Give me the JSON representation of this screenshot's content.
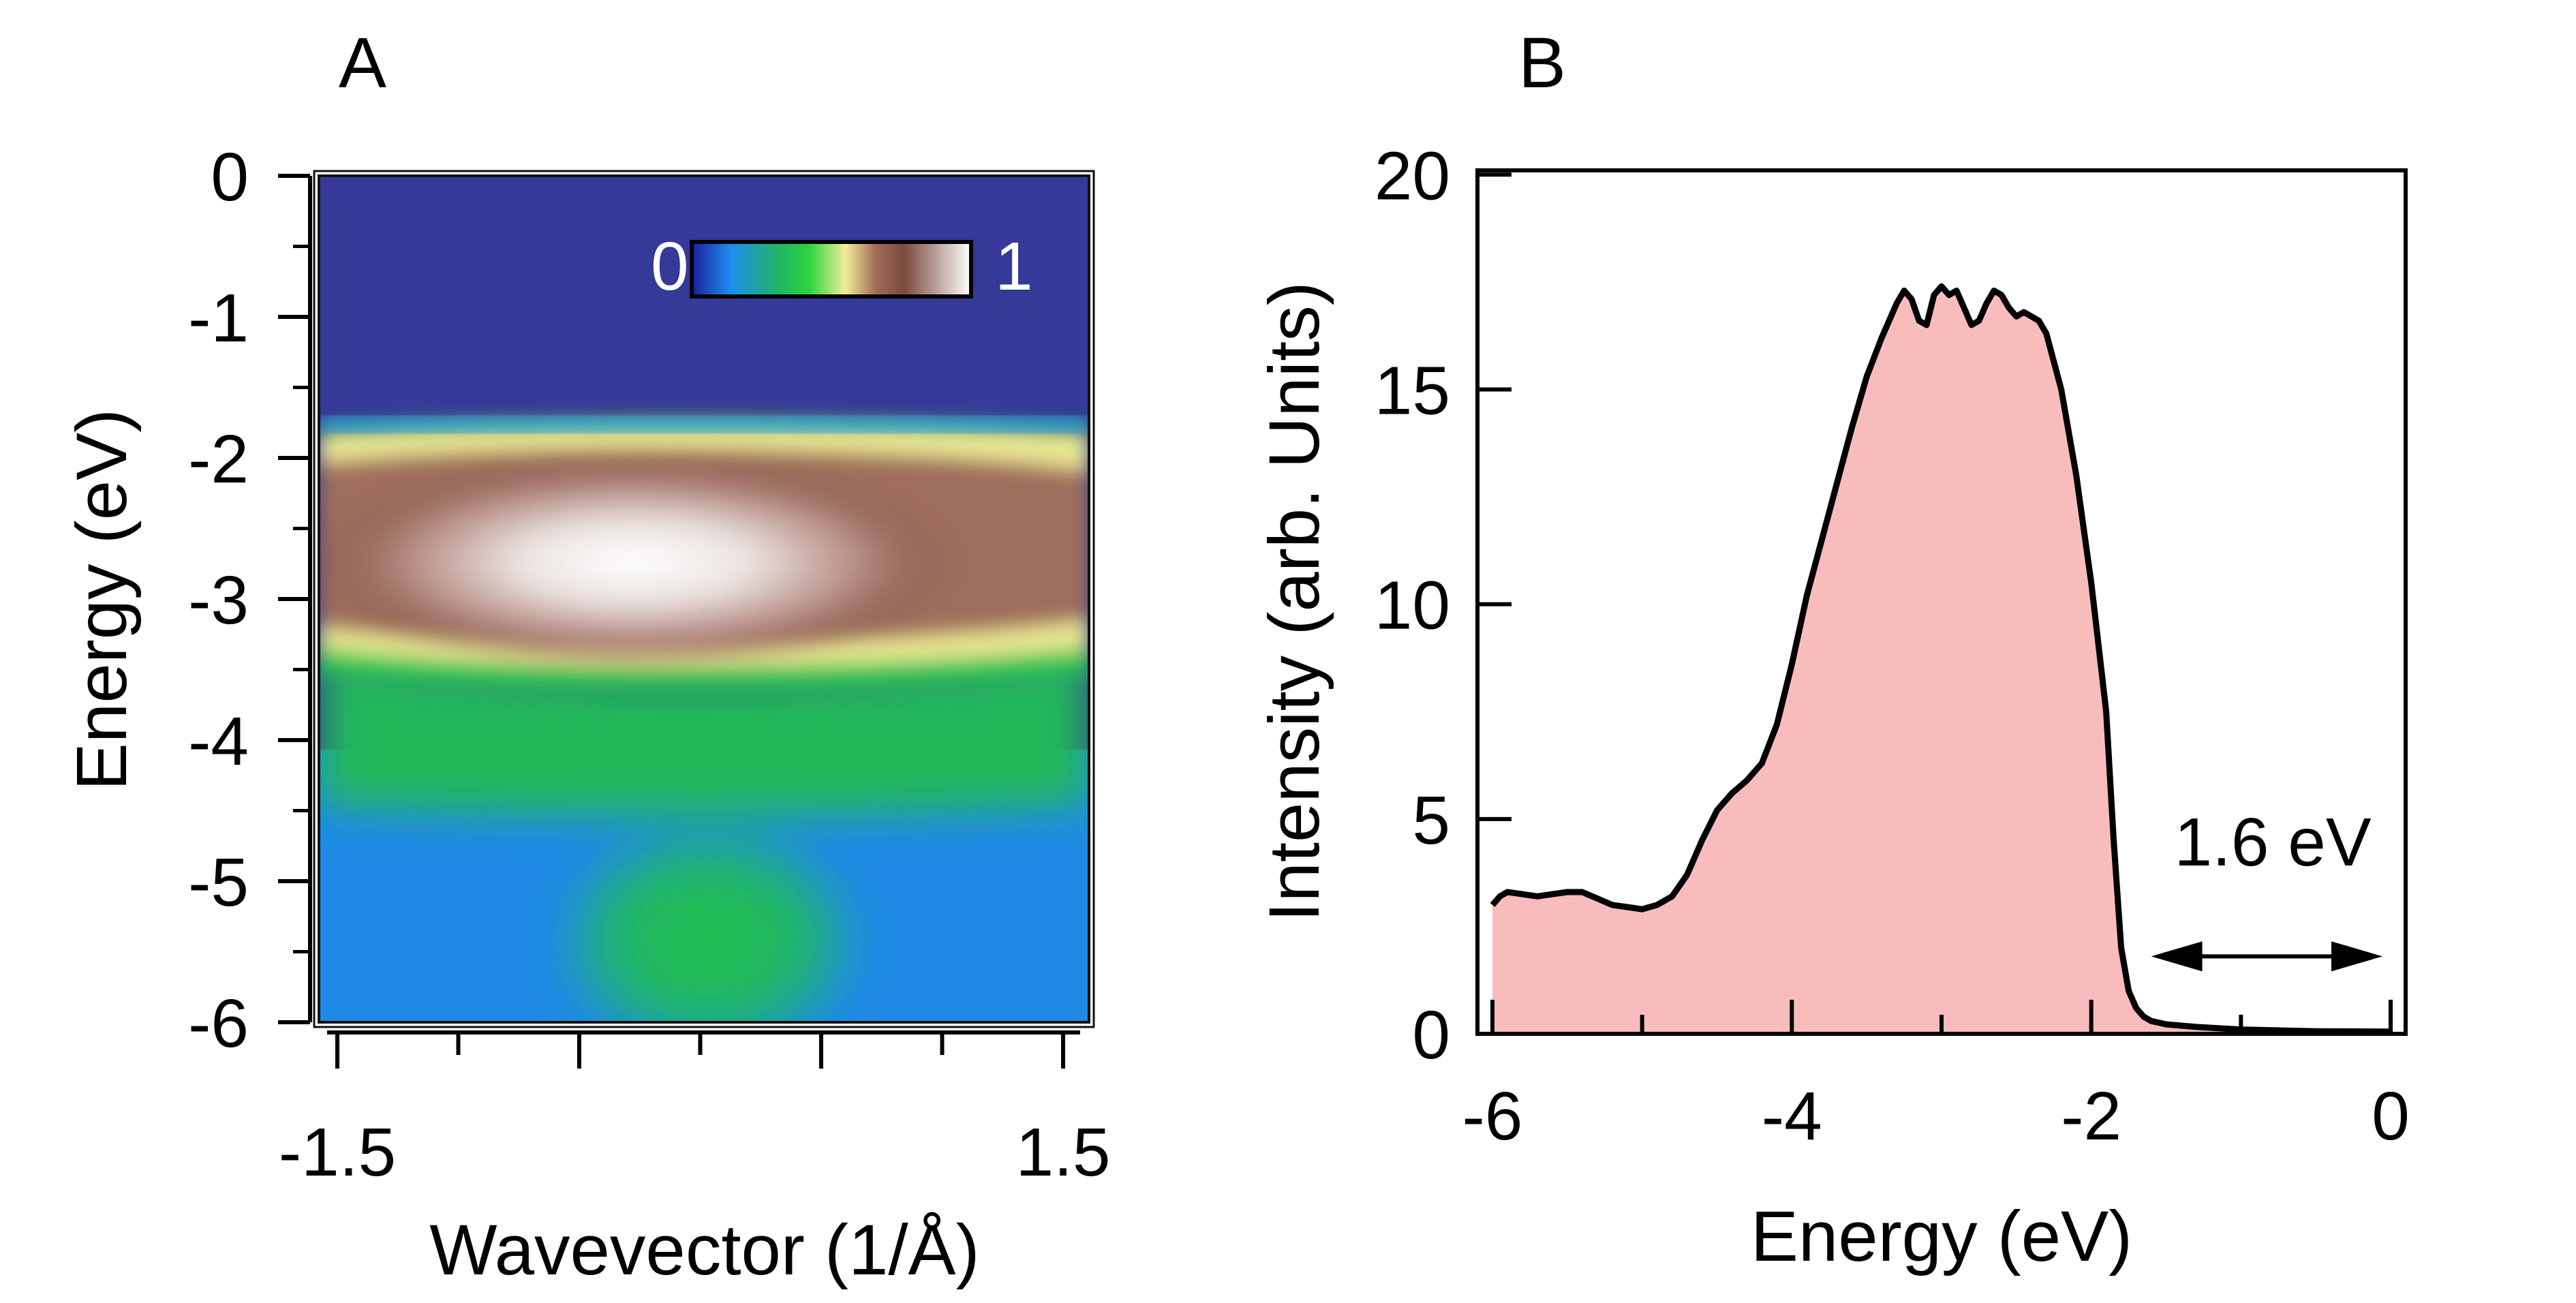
{
  "chart_data": [
    {
      "type": "heatmap",
      "panel_label": "A",
      "xlabel": "Wavevector (1/Å)",
      "ylabel": "Energy (eV)",
      "xlim": [
        -1.5,
        1.5
      ],
      "ylim": [
        -6,
        0
      ],
      "xtick_labels": [
        "-1.5",
        "1.5"
      ],
      "ytick_labels": [
        "0",
        "-1",
        "-2",
        "-3",
        "-4",
        "-5",
        "-6"
      ],
      "colorbar": {
        "min_label": "0",
        "max_label": "1",
        "colors": [
          "#1a1f9a",
          "#1f8cf0",
          "#1fb26b",
          "#2bd43c",
          "#f2ee9a",
          "#a06a58",
          "#7a4a3e",
          "#ffffff"
        ]
      },
      "description_free": true
    },
    {
      "type": "area",
      "panel_label": "B",
      "xlabel": "Energy (eV)",
      "ylabel": "Intensity (arb. Units)",
      "xlim": [
        -6.1,
        0.1
      ],
      "ylim": [
        0,
        20.1
      ],
      "xtick_labels": [
        "-6",
        "-4",
        "-2",
        "0"
      ],
      "ytick_labels": [
        "0",
        "5",
        "10",
        "15",
        "20"
      ],
      "fill_color": "#f9bcbc",
      "line_color": "#000000",
      "annotation": {
        "text": "1.6 eV",
        "from_x": -1.6,
        "to_x": 0,
        "y": 2.2
      },
      "series": [
        {
          "x": [
            -6.0,
            -5.95,
            -5.9,
            -5.8,
            -5.7,
            -5.6,
            -5.5,
            -5.4,
            -5.3,
            -5.2,
            -5.1,
            -5.0,
            -4.9,
            -4.8,
            -4.7,
            -4.6,
            -4.5,
            -4.4,
            -4.3,
            -4.2,
            -4.1,
            -4.0,
            -3.9,
            -3.8,
            -3.7,
            -3.6,
            -3.5,
            -3.4,
            -3.3,
            -3.25,
            -3.2,
            -3.15,
            -3.1,
            -3.05,
            -3.0,
            -2.95,
            -2.9,
            -2.85,
            -2.8,
            -2.75,
            -2.7,
            -2.65,
            -2.6,
            -2.55,
            -2.5,
            -2.45,
            -2.4,
            -2.35,
            -2.3,
            -2.2,
            -2.1,
            -2.0,
            -1.95,
            -1.9,
            -1.85,
            -1.8,
            -1.75,
            -1.7,
            -1.65,
            -1.6,
            -1.5,
            -1.3,
            -1.0,
            -0.5,
            0.0
          ],
          "y": [
            3.0,
            3.2,
            3.3,
            3.25,
            3.2,
            3.25,
            3.3,
            3.3,
            3.15,
            3.0,
            2.95,
            2.9,
            3.0,
            3.2,
            3.7,
            4.5,
            5.2,
            5.6,
            5.9,
            6.3,
            7.2,
            8.6,
            10.2,
            11.5,
            12.8,
            14.1,
            15.3,
            16.2,
            17.0,
            17.3,
            17.1,
            16.6,
            16.5,
            17.2,
            17.4,
            17.2,
            17.3,
            16.9,
            16.5,
            16.6,
            17.0,
            17.3,
            17.2,
            16.9,
            16.7,
            16.8,
            16.7,
            16.6,
            16.3,
            15.0,
            13.0,
            10.5,
            9.0,
            7.5,
            4.5,
            2.0,
            1.0,
            0.6,
            0.4,
            0.3,
            0.22,
            0.16,
            0.1,
            0.06,
            0.05
          ]
        }
      ]
    }
  ]
}
